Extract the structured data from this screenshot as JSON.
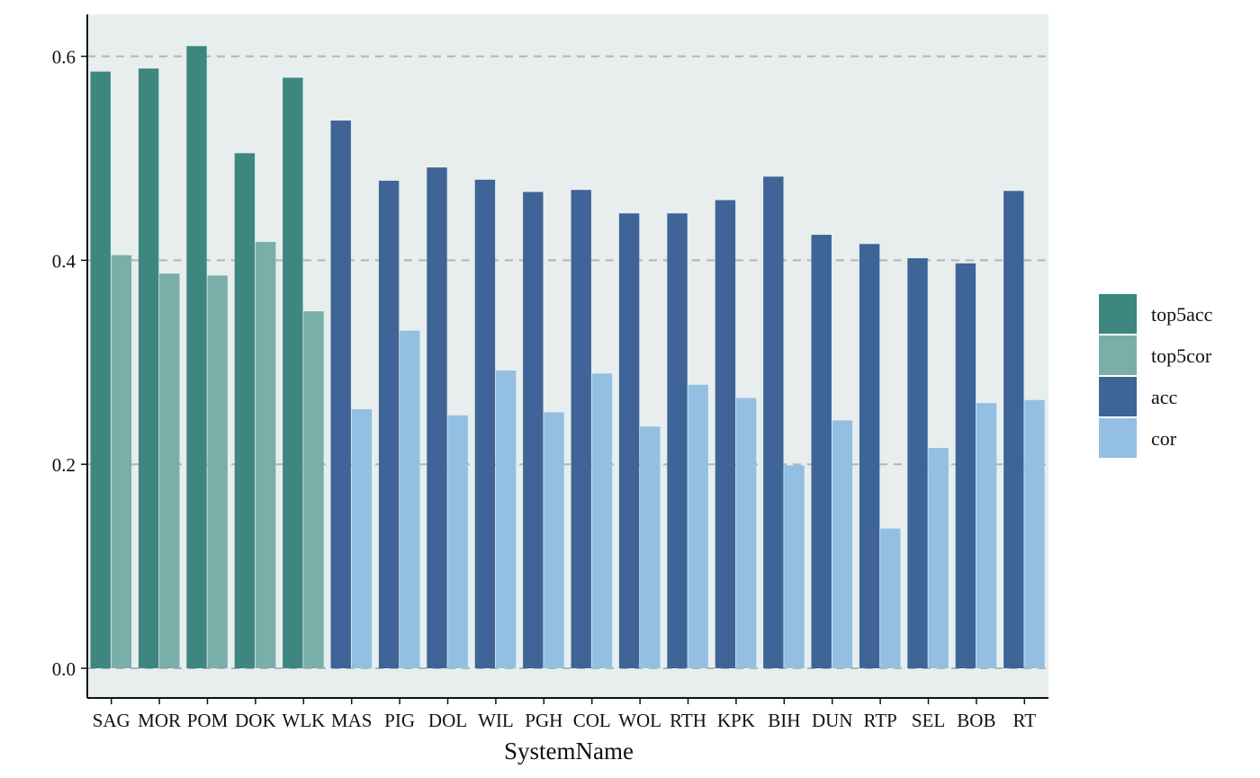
{
  "chart_data": {
    "type": "bar",
    "title": "",
    "xlabel": "SystemName",
    "ylabel": "",
    "ylim": [
      -0.03,
      0.62
    ],
    "yticks": [
      0.0,
      0.2,
      0.4,
      0.6
    ],
    "ytick_labels": [
      "0.0",
      "0.2",
      "0.4",
      "0.6"
    ],
    "grid": "horizontal dashed",
    "legend_position": "right",
    "categories": [
      "SAG",
      "MOR",
      "POM",
      "DOK",
      "WLK",
      "MAS",
      "PIG",
      "DOL",
      "WIL",
      "PGH",
      "COL",
      "WOL",
      "RTH",
      "KPK",
      "BIH",
      "DUN",
      "RTP",
      "SEL",
      "BOB",
      "RT"
    ],
    "series": [
      {
        "name": "top5acc",
        "color": "#3d8780",
        "values": [
          0.585,
          0.588,
          0.61,
          0.505,
          0.579,
          null,
          null,
          null,
          null,
          null,
          null,
          null,
          null,
          null,
          null,
          null,
          null,
          null,
          null,
          null
        ]
      },
      {
        "name": "top5cor",
        "color": "#79afa8",
        "values": [
          0.405,
          0.387,
          0.385,
          0.418,
          0.35,
          null,
          null,
          null,
          null,
          null,
          null,
          null,
          null,
          null,
          null,
          null,
          null,
          null,
          null,
          null
        ]
      },
      {
        "name": "acc",
        "color": "#3f6497",
        "values": [
          null,
          null,
          null,
          null,
          null,
          0.537,
          0.478,
          0.491,
          0.479,
          0.467,
          0.469,
          0.446,
          0.446,
          0.459,
          0.482,
          0.425,
          0.416,
          0.402,
          0.397,
          0.468
        ]
      },
      {
        "name": "cor",
        "color": "#93bfe2",
        "values": [
          null,
          null,
          null,
          null,
          null,
          0.254,
          0.331,
          0.248,
          0.292,
          0.251,
          0.289,
          0.237,
          0.278,
          0.265,
          0.199,
          0.243,
          0.137,
          0.216,
          0.26,
          0.263
        ]
      }
    ]
  },
  "colors": {
    "panel_background": "#e8eeee",
    "grid": "#b0b4b4"
  }
}
